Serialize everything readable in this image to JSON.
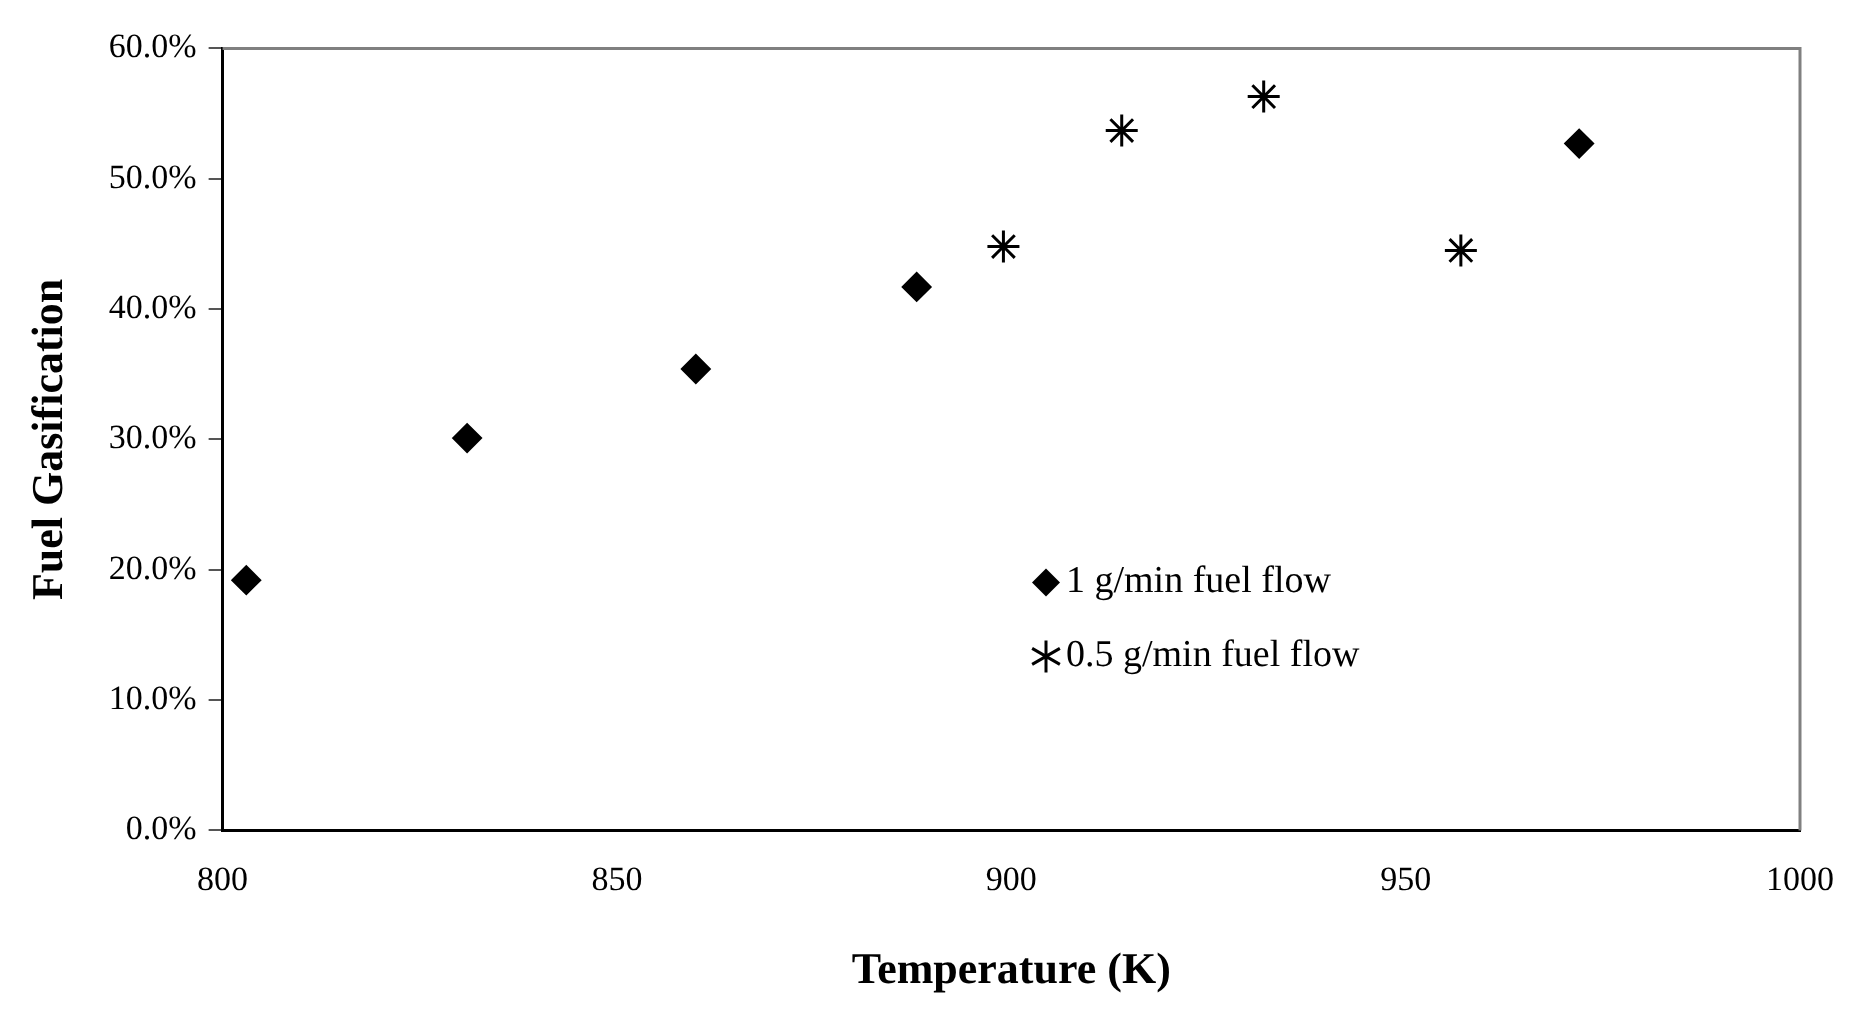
{
  "chart_data": {
    "type": "scatter",
    "xlabel": "Temperature (K)",
    "ylabel": "Fuel Gasification",
    "series": [
      {
        "name": "1 g/min fuel flow",
        "color": "#000000",
        "marker": "diamond",
        "x": [
          803,
          831,
          860,
          888,
          972
        ],
        "values": [
          19.2,
          30.1,
          35.4,
          41.7,
          52.7
        ]
      },
      {
        "name": "0.5 g/min fuel flow",
        "color": "#000000",
        "marker": "cross",
        "x": [
          899,
          914,
          932,
          957
        ],
        "values": [
          44.8,
          53.7,
          56.3,
          44.5
        ]
      }
    ],
    "xlim": [
      800,
      1000
    ],
    "xticks": [
      800,
      850,
      900,
      950,
      1000
    ],
    "ylim": [
      0,
      60
    ],
    "yticks": [
      {
        "value": 0,
        "label": "0.0%"
      },
      {
        "value": 10,
        "label": "10.0%"
      },
      {
        "value": 20,
        "label": "20.0%"
      },
      {
        "value": 30,
        "label": "30.0%"
      },
      {
        "value": 40,
        "label": "40.0%"
      },
      {
        "value": 50,
        "label": "50.0%"
      },
      {
        "value": 60,
        "label": "60.0%"
      }
    ],
    "grid": false,
    "legend": "bottom right"
  }
}
